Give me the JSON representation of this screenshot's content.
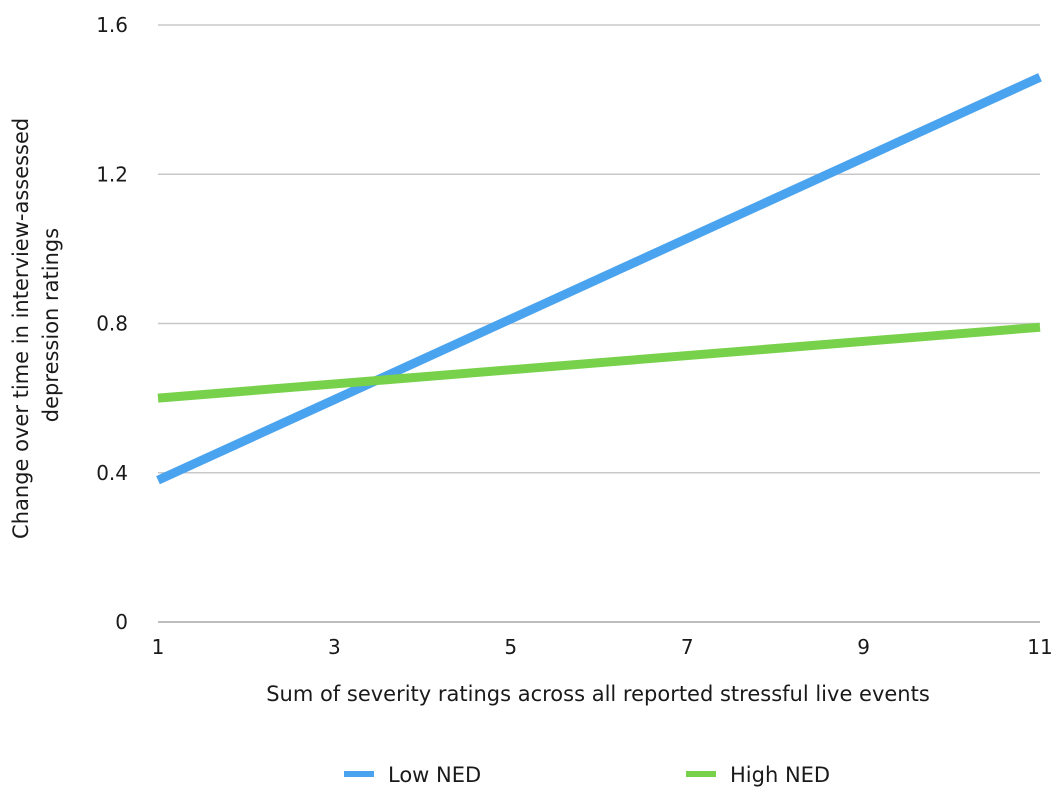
{
  "chart_data": {
    "type": "line",
    "title": "",
    "xlabel": "Sum of severity ratings across all reported stressful live events",
    "ylabel_lines": [
      "Change over time in interview-assessed",
      "depression ratings"
    ],
    "xlim": [
      1,
      11
    ],
    "ylim": [
      0,
      1.6
    ],
    "x_ticks": [
      "1",
      "3",
      "5",
      "7",
      "9",
      "11"
    ],
    "y_ticks": [
      "0",
      "0.4",
      "0.8",
      "1.2",
      "1.6"
    ],
    "grid": true,
    "legend_position": "bottom",
    "series": [
      {
        "name": "Low NED",
        "color": "#4aa3ee",
        "x": [
          1,
          11
        ],
        "y": [
          0.38,
          1.46
        ]
      },
      {
        "name": "High NED",
        "color": "#78d14b",
        "x": [
          1,
          11
        ],
        "y": [
          0.6,
          0.79
        ]
      }
    ]
  }
}
